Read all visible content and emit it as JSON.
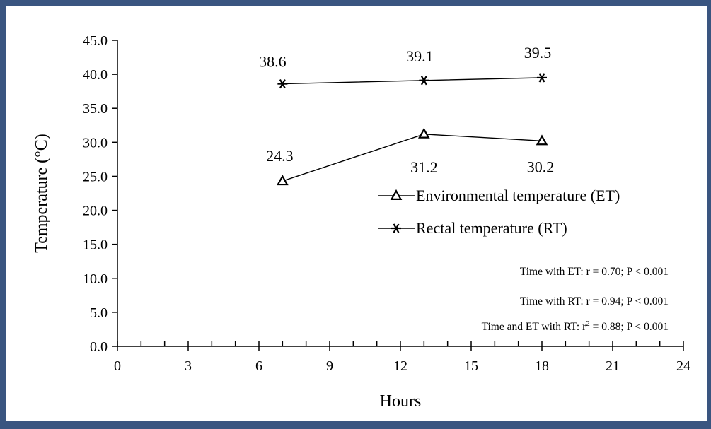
{
  "colors": {
    "frame": "#3a5580",
    "line": "#000000",
    "background": "#ffffff"
  },
  "chart_data": {
    "type": "line",
    "title": "",
    "xlabel": "Hours",
    "ylabel": "Temperature (°C)",
    "xlim": [
      0,
      24
    ],
    "ylim": [
      0,
      45
    ],
    "x_ticks": [
      0,
      3,
      6,
      9,
      12,
      15,
      18,
      21,
      24
    ],
    "x_minor_step": 1,
    "y_ticks": [
      "0.0",
      "5.0",
      "10.0",
      "15.0",
      "20.0",
      "25.0",
      "30.0",
      "35.0",
      "40.0",
      "45.0"
    ],
    "grid": false,
    "legend_position": "right",
    "series": [
      {
        "name": "Environmental temperature (ET)",
        "marker": "triangle",
        "x": [
          7,
          13,
          18
        ],
        "y": [
          24.3,
          31.2,
          30.2
        ],
        "labels": [
          "24.3",
          "31.2",
          "30.2"
        ]
      },
      {
        "name": "Rectal temperature (RT)",
        "marker": "asterisk",
        "x": [
          7,
          13,
          18
        ],
        "y": [
          38.6,
          39.1,
          39.5
        ],
        "labels": [
          "38.6",
          "39.1",
          "39.5"
        ]
      }
    ],
    "annotations": [
      "Time with ET: r = 0.70; P < 0.001",
      "Time with RT: r = 0.94; P < 0.001",
      {
        "pre": "Time and ET with RT: r",
        "sup": "2",
        "post": " = 0.88; P < 0.001"
      }
    ]
  }
}
